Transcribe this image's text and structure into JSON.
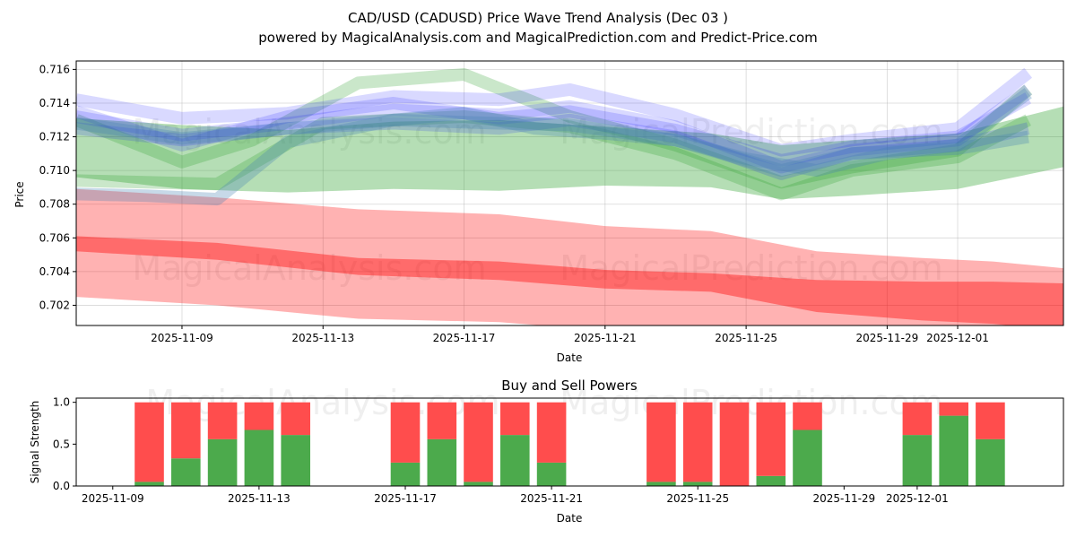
{
  "chart_data": [
    {
      "type": "area",
      "title": "CAD/USD (CADUSD) Price Wave Trend Analysis (Dec 03 )",
      "subtitle": "powered by MagicalAnalysis.com and MagicalPrediction.com and Predict-Price.com",
      "xlabel": "Date",
      "ylabel": "Price",
      "x_range": [
        "2025-11-06",
        "2025-12-04"
      ],
      "ylim": [
        0.7008,
        0.7165
      ],
      "grid": true,
      "x_ticks": [
        "2025-11-09",
        "2025-11-13",
        "2025-11-17",
        "2025-11-21",
        "2025-11-25",
        "2025-11-29",
        "2025-12-01"
      ],
      "y_ticks": [
        "0.702",
        "0.704",
        "0.706",
        "0.708",
        "0.710",
        "0.712",
        "0.714",
        "0.716"
      ],
      "watermarks": [
        "MagicalAnalysis.com",
        "MagicalPrediction.com"
      ],
      "series": [
        {
          "name": "red wide band",
          "color": "#ff0000",
          "opacity": 0.3,
          "x": [
            "2025-11-06",
            "2025-11-10",
            "2025-11-14",
            "2025-11-18",
            "2025-11-21",
            "2025-11-24",
            "2025-11-27",
            "2025-11-30",
            "2025-12-02",
            "2025-12-04"
          ],
          "upper": [
            0.7089,
            0.7084,
            0.7077,
            0.7074,
            0.7067,
            0.7064,
            0.7052,
            0.7048,
            0.7046,
            0.7042
          ],
          "lower": [
            0.7025,
            0.702,
            0.7012,
            0.701,
            0.7005,
            0.7003,
            0.7001,
            0.7,
            0.6998,
            0.6995
          ]
        },
        {
          "name": "red core band",
          "color": "#ff0000",
          "opacity": 0.4,
          "x": [
            "2025-11-06",
            "2025-11-10",
            "2025-11-14",
            "2025-11-18",
            "2025-11-21",
            "2025-11-24",
            "2025-11-27",
            "2025-11-30",
            "2025-12-02",
            "2025-12-04"
          ],
          "upper": [
            0.7061,
            0.7057,
            0.7048,
            0.7046,
            0.7041,
            0.7039,
            0.7035,
            0.7034,
            0.7034,
            0.7033
          ],
          "lower": [
            0.7052,
            0.7047,
            0.7038,
            0.7035,
            0.703,
            0.7028,
            0.7016,
            0.7011,
            0.7009,
            0.7005
          ]
        },
        {
          "name": "green wide band",
          "color": "#2ca02c",
          "opacity": 0.35,
          "x": [
            "2025-11-06",
            "2025-11-09",
            "2025-11-12",
            "2025-11-15",
            "2025-11-18",
            "2025-11-21",
            "2025-11-24",
            "2025-11-26",
            "2025-11-28",
            "2025-12-01",
            "2025-12-04"
          ],
          "upper": [
            0.7131,
            0.7127,
            0.7124,
            0.7129,
            0.713,
            0.7126,
            0.7122,
            0.7115,
            0.7118,
            0.7122,
            0.7138
          ],
          "lower": [
            0.7096,
            0.7089,
            0.7087,
            0.7089,
            0.7088,
            0.7091,
            0.709,
            0.7083,
            0.7085,
            0.7089,
            0.7102
          ]
        },
        {
          "name": "green line 1",
          "color": "#2ca02c",
          "opacity": 0.25,
          "x": [
            "2025-11-06",
            "2025-11-09",
            "2025-11-11",
            "2025-11-14",
            "2025-11-17",
            "2025-11-20",
            "2025-11-23",
            "2025-11-26",
            "2025-11-28",
            "2025-12-01",
            "2025-12-03"
          ],
          "y": [
            0.713,
            0.7105,
            0.7118,
            0.7152,
            0.7157,
            0.7132,
            0.7115,
            0.7093,
            0.7102,
            0.7112,
            0.7148
          ]
        },
        {
          "name": "green line 2",
          "color": "#2ca02c",
          "opacity": 0.25,
          "x": [
            "2025-11-06",
            "2025-11-10",
            "2025-11-13",
            "2025-11-17",
            "2025-11-20",
            "2025-11-23",
            "2025-11-26",
            "2025-11-28",
            "2025-12-01",
            "2025-12-03"
          ],
          "y": [
            0.7094,
            0.7092,
            0.7128,
            0.7132,
            0.7126,
            0.711,
            0.7086,
            0.71,
            0.7108,
            0.713
          ]
        },
        {
          "name": "blue line 1",
          "color": "#0000ff",
          "opacity": 0.15,
          "x": [
            "2025-11-06",
            "2025-11-09",
            "2025-11-12",
            "2025-11-15",
            "2025-11-18",
            "2025-11-20",
            "2025-11-23",
            "2025-11-26",
            "2025-11-28",
            "2025-12-01",
            "2025-12-03"
          ],
          "y": [
            0.7142,
            0.7131,
            0.7134,
            0.7144,
            0.7142,
            0.7148,
            0.7133,
            0.7112,
            0.7118,
            0.7125,
            0.7158
          ]
        },
        {
          "name": "blue line 2",
          "color": "#0000ff",
          "opacity": 0.15,
          "x": [
            "2025-11-06",
            "2025-11-09",
            "2025-11-12",
            "2025-11-15",
            "2025-11-18",
            "2025-11-20",
            "2025-11-23",
            "2025-11-26",
            "2025-11-28",
            "2025-12-01",
            "2025-12-03"
          ],
          "y": [
            0.7132,
            0.7121,
            0.7128,
            0.7136,
            0.7133,
            0.7138,
            0.7126,
            0.7102,
            0.7112,
            0.7118,
            0.7148
          ]
        },
        {
          "name": "blue line 3",
          "color": "#0000ff",
          "opacity": 0.15,
          "x": [
            "2025-11-06",
            "2025-11-09",
            "2025-11-12",
            "2025-11-15",
            "2025-11-18",
            "2025-11-20",
            "2025-11-23",
            "2025-11-26",
            "2025-11-28",
            "2025-12-01",
            "2025-12-03"
          ],
          "y": [
            0.7125,
            0.7118,
            0.7125,
            0.7128,
            0.7125,
            0.713,
            0.712,
            0.7098,
            0.711,
            0.7115,
            0.7125
          ]
        },
        {
          "name": "blue line 4",
          "color": "#0000ff",
          "opacity": 0.15,
          "x": [
            "2025-11-06",
            "2025-11-09",
            "2025-11-12",
            "2025-11-15",
            "2025-11-18",
            "2025-11-20",
            "2025-11-23",
            "2025-11-26",
            "2025-11-28",
            "2025-12-01",
            "2025-12-03"
          ],
          "y": [
            0.7135,
            0.7115,
            0.7132,
            0.714,
            0.7131,
            0.7135,
            0.7124,
            0.7106,
            0.7114,
            0.712,
            0.7143
          ]
        },
        {
          "name": "steel blue line 1",
          "color": "#4682b4",
          "opacity": 0.3,
          "x": [
            "2025-11-06",
            "2025-11-09",
            "2025-11-12",
            "2025-11-15",
            "2025-11-18",
            "2025-11-20",
            "2025-11-23",
            "2025-11-26",
            "2025-11-28",
            "2025-12-01",
            "2025-12-03"
          ],
          "y": [
            0.7128,
            0.7119,
            0.7125,
            0.713,
            0.7128,
            0.7127,
            0.7118,
            0.71,
            0.711,
            0.7113,
            0.712
          ]
        },
        {
          "name": "steel blue line 2",
          "color": "#4682b4",
          "opacity": 0.3,
          "x": [
            "2025-11-06",
            "2025-11-08",
            "2025-11-10",
            "2025-11-12",
            "2025-11-15",
            "2025-11-17",
            "2025-11-19",
            "2025-11-21",
            "2025-11-23",
            "2025-11-25",
            "2025-11-27",
            "2025-11-29",
            "2025-12-01",
            "2025-12-03"
          ],
          "y": [
            0.7086,
            0.7085,
            0.7083,
            0.7117,
            0.713,
            0.7134,
            0.7125,
            0.7122,
            0.7118,
            0.7107,
            0.71,
            0.711,
            0.7115,
            0.7146
          ]
        }
      ]
    },
    {
      "type": "bar",
      "title": "Buy and Sell Powers",
      "xlabel": "Date",
      "ylabel": "Signal Strength",
      "x_range": [
        "2025-11-08",
        "2025-12-05"
      ],
      "ylim": [
        0,
        1.05
      ],
      "grid": false,
      "x_ticks": [
        "2025-11-09",
        "2025-11-13",
        "2025-11-17",
        "2025-11-21",
        "2025-11-25",
        "2025-11-29",
        "2025-12-01"
      ],
      "y_ticks": [
        "0.0",
        "0.5",
        "1.0"
      ],
      "watermarks": [
        "MagicalAnalysis.com",
        "MagicalPrediction.com"
      ],
      "colors": {
        "buy": "#4caa4c",
        "sell": "#ff4d4d"
      },
      "dates": [
        "2025-11-10",
        "2025-11-11",
        "2025-11-12",
        "2025-11-13",
        "2025-11-14",
        "2025-11-17",
        "2025-11-18",
        "2025-11-19",
        "2025-11-20",
        "2025-11-21",
        "2025-11-24",
        "2025-11-25",
        "2025-11-26",
        "2025-11-27",
        "2025-11-28",
        "2025-12-01",
        "2025-12-02",
        "2025-12-03"
      ],
      "buy": [
        0.05,
        0.33,
        0.56,
        0.67,
        0.61,
        0.28,
        0.56,
        0.05,
        0.61,
        0.28,
        0.05,
        0.05,
        0.0,
        0.12,
        0.67,
        0.61,
        0.84,
        0.56
      ],
      "sell": [
        0.95,
        0.67,
        0.44,
        0.33,
        0.39,
        0.72,
        0.44,
        0.95,
        0.39,
        0.72,
        0.95,
        0.95,
        1.0,
        0.88,
        0.33,
        0.39,
        0.16,
        0.44
      ]
    }
  ]
}
